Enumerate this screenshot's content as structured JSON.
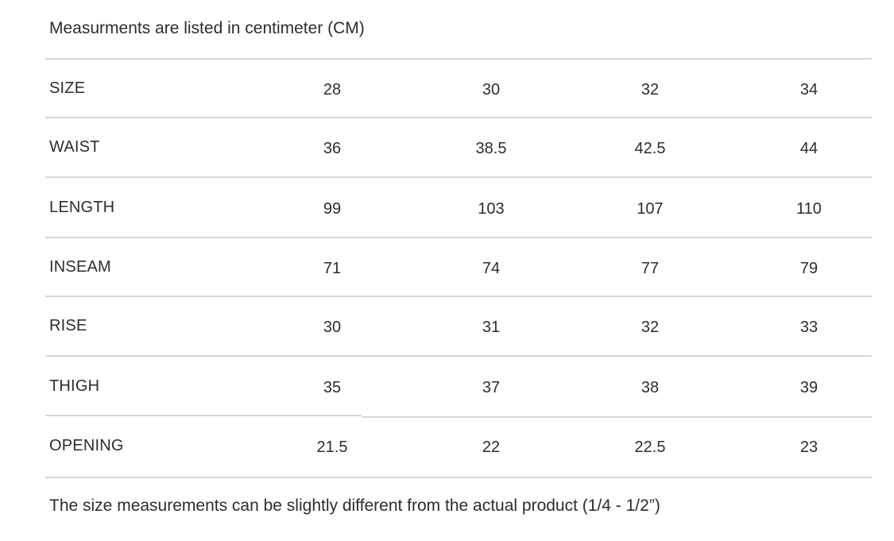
{
  "title": "Measurments are listed in centimeter (CM)",
  "footnote": "The size measurements can be slightly different from the actual product (1/4 - 1/2”)",
  "unit": "cm",
  "colors": {
    "background": "#ffffff",
    "text": "#2d2d2d",
    "divider": "#d7d7d7"
  },
  "table": {
    "rows": [
      {
        "label": "SIZE",
        "values": [
          "28",
          "30",
          "32",
          "34"
        ]
      },
      {
        "label": "WAIST",
        "values": [
          "36",
          "38.5",
          "42.5",
          "44"
        ]
      },
      {
        "label": "LENGTH",
        "values": [
          "99",
          "103",
          "107",
          "110"
        ]
      },
      {
        "label": "INSEAM",
        "values": [
          "71",
          "74",
          "77",
          "79"
        ]
      },
      {
        "label": "RISE",
        "values": [
          "30",
          "31",
          "32",
          "33"
        ]
      },
      {
        "label": "THIGH",
        "values": [
          "35",
          "37",
          "38",
          "39"
        ]
      },
      {
        "label": "OPENING",
        "values": [
          "21.5",
          "22",
          "22.5",
          "23"
        ]
      }
    ]
  },
  "chart_data": {
    "type": "table",
    "title": "Measurments are listed in centimeter (CM)",
    "columns": [
      "SIZE",
      "28",
      "30",
      "32",
      "34"
    ],
    "rows": [
      [
        "WAIST",
        36,
        38.5,
        42.5,
        44
      ],
      [
        "LENGTH",
        99,
        103,
        107,
        110
      ],
      [
        "INSEAM",
        71,
        74,
        77,
        79
      ],
      [
        "RISE",
        30,
        31,
        32,
        33
      ],
      [
        "THIGH",
        35,
        37,
        38,
        39
      ],
      [
        "OPENING",
        21.5,
        22,
        22.5,
        23
      ]
    ],
    "footnote": "The size measurements can be slightly different from the actual product (1/4 - 1/2”)",
    "unit": "cm",
    "layout": "first column row labels left-aligned, size values centered; light gray horizontal dividers between rows; no vertical rules"
  }
}
